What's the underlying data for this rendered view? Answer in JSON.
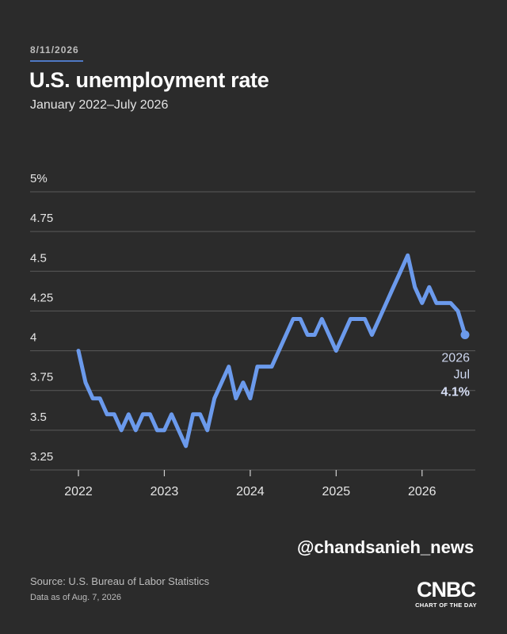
{
  "header": {
    "date": "8/11/2026",
    "title": "U.S. unemployment rate",
    "subtitle": "January 2022–July 2026"
  },
  "chart_data": {
    "type": "line",
    "title": "U.S. unemployment rate",
    "subtitle": "January 2022–July 2026",
    "xlabel": "",
    "ylabel": "",
    "ylim": [
      3.25,
      5
    ],
    "xlim": [
      "2022-01",
      "2026-07"
    ],
    "y_ticks": [
      {
        "value": 5,
        "label": "5%"
      },
      {
        "value": 4.75,
        "label": "4.75"
      },
      {
        "value": 4.5,
        "label": "4.5"
      },
      {
        "value": 4.25,
        "label": "4.25"
      },
      {
        "value": 4,
        "label": "4"
      },
      {
        "value": 3.75,
        "label": "3.75"
      },
      {
        "value": 3.5,
        "label": "3.5"
      },
      {
        "value": 3.25,
        "label": "3.25"
      }
    ],
    "x_ticks": [
      "2022",
      "2023",
      "2024",
      "2025",
      "2026"
    ],
    "grid": true,
    "line_color": "#6b9aec",
    "series": [
      {
        "name": "",
        "x": [
          "2022-01",
          "2022-02",
          "2022-03",
          "2022-04",
          "2022-05",
          "2022-06",
          "2022-07",
          "2022-08",
          "2022-09",
          "2022-10",
          "2022-11",
          "2022-12",
          "2023-01",
          "2023-02",
          "2023-03",
          "2023-04",
          "2023-05",
          "2023-06",
          "2023-07",
          "2023-08",
          "2023-09",
          "2023-10",
          "2023-11",
          "2023-12",
          "2024-01",
          "2024-02",
          "2024-03",
          "2024-04",
          "2024-05",
          "2024-06",
          "2024-07",
          "2024-08",
          "2024-09",
          "2024-10",
          "2024-11",
          "2024-12",
          "2025-01",
          "2025-02",
          "2025-03",
          "2025-04",
          "2025-05",
          "2025-06",
          "2025-07",
          "2025-08",
          "2025-09",
          "2025-10",
          "2025-11",
          "2025-12",
          "2026-01",
          "2026-02",
          "2026-03",
          "2026-04",
          "2026-05",
          "2026-06",
          "2026-07"
        ],
        "y": [
          4.0,
          3.8,
          3.7,
          3.7,
          3.6,
          3.6,
          3.5,
          3.6,
          3.5,
          3.6,
          3.6,
          3.5,
          3.5,
          3.6,
          3.5,
          3.4,
          3.6,
          3.6,
          3.5,
          3.7,
          3.8,
          3.9,
          3.7,
          3.8,
          3.7,
          3.9,
          3.9,
          3.9,
          4.0,
          4.1,
          4.2,
          4.2,
          4.1,
          4.1,
          4.2,
          4.1,
          4.0,
          4.1,
          4.2,
          4.2,
          4.2,
          4.1,
          4.2,
          4.3,
          4.4,
          4.5,
          4.6,
          4.4,
          4.3,
          4.4,
          4.3,
          4.3,
          4.3,
          4.25,
          4.1
        ]
      }
    ],
    "annotation": {
      "year": "2026",
      "month": "Jul",
      "value_label": "4.1%"
    }
  },
  "watermark": "@chandsanieh_news",
  "footer": {
    "source": "Source: U.S. Bureau of Labor Statistics",
    "data_as_of": "Data as of Aug. 7, 2026",
    "logo_text": "CNBC",
    "logo_tagline": "CHART OF THE DAY"
  }
}
